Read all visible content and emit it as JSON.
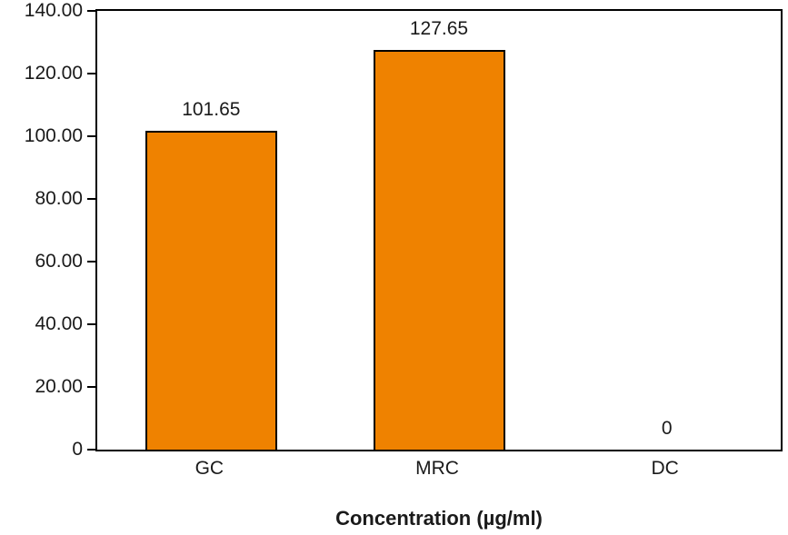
{
  "chart_data": {
    "type": "bar",
    "title": "",
    "categories": [
      "GC",
      "MRC",
      "DC"
    ],
    "values": [
      101.65,
      127.65,
      0
    ],
    "value_labels": [
      "101.65",
      "127.65",
      "0"
    ],
    "xlabel": "Concentration (µg/ml)",
    "ylabel": "",
    "ylim": [
      0,
      140
    ],
    "ytick_interval": 20,
    "ytick_labels": [
      "140.00",
      "120.00",
      "100.00",
      "80.00",
      "60.00",
      "40.00",
      "20.00",
      "0"
    ],
    "grid": false,
    "legend_position": "none",
    "colors": {
      "bar_fill": "#EF8200",
      "bar_border": "#000000",
      "axis": "#000000",
      "text": "#1a1a1a",
      "background": "#FFFFFF"
    }
  }
}
